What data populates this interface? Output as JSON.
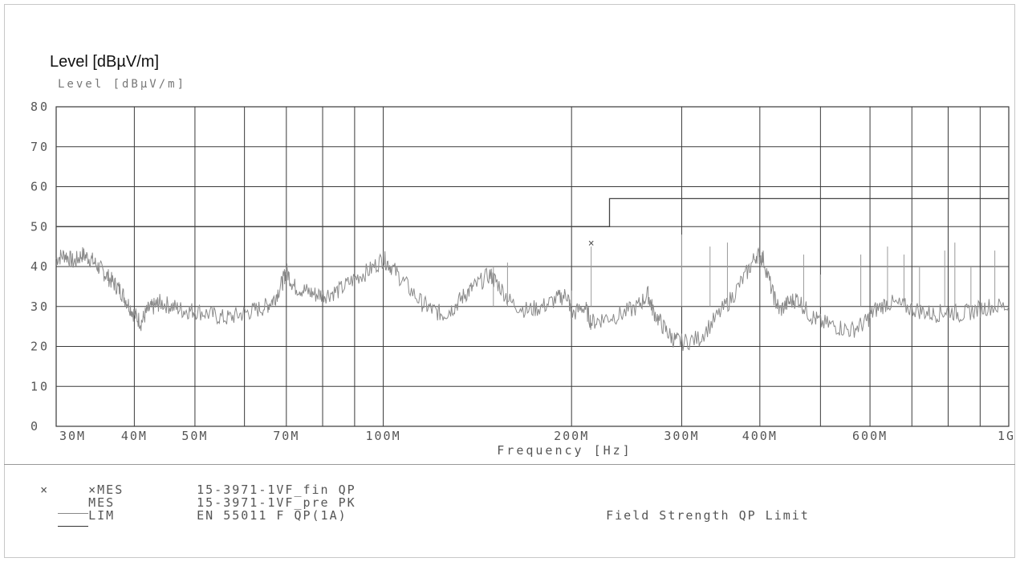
{
  "chart_data": {
    "type": "line",
    "ylabel": "Level [dBµV/m]",
    "ylabel_scan": "Level [dBµV/m]",
    "xlabel": "Frequency  [Hz]",
    "x_scale": "log",
    "xlim_hz": [
      30000000,
      1000000000
    ],
    "ylim": [
      0,
      80
    ],
    "yticks": [
      0,
      10,
      20,
      30,
      40,
      50,
      60,
      70,
      80
    ],
    "xtick_labels": [
      {
        "label": "30M",
        "value": 30000000
      },
      {
        "label": "40M",
        "value": 40000000
      },
      {
        "label": "50M",
        "value": 50000000
      },
      {
        "label": "70M",
        "value": 70000000
      },
      {
        "label": "100M",
        "value": 100000000
      },
      {
        "label": "200M",
        "value": 200000000
      },
      {
        "label": "300M",
        "value": 300000000
      },
      {
        "label": "400M",
        "value": 400000000
      },
      {
        "label": "600M",
        "value": 600000000
      },
      {
        "label": "1G",
        "value": 1000000000
      }
    ],
    "xgrid": [
      40000000,
      50000000,
      60000000,
      70000000,
      80000000,
      90000000,
      100000000,
      200000000,
      300000000,
      400000000,
      500000000,
      600000000,
      700000000,
      800000000,
      900000000
    ],
    "grid": true,
    "limit_line": {
      "name": "EN 55011 F QP(1A)",
      "points": [
        [
          30000000,
          50
        ],
        [
          230000000,
          50
        ],
        [
          230000000,
          57
        ],
        [
          1000000000,
          57
        ]
      ]
    },
    "series": [
      {
        "name": "15-3971-1VF_pre PK",
        "points": [
          [
            30000000,
            42
          ],
          [
            31000000,
            43
          ],
          [
            32000000,
            41
          ],
          [
            33000000,
            43
          ],
          [
            34000000,
            42
          ],
          [
            35000000,
            40
          ],
          [
            36000000,
            38
          ],
          [
            37000000,
            36
          ],
          [
            38000000,
            34
          ],
          [
            39000000,
            31
          ],
          [
            40000000,
            28
          ],
          [
            41000000,
            26
          ],
          [
            42000000,
            29
          ],
          [
            43000000,
            30
          ],
          [
            44000000,
            31
          ],
          [
            46000000,
            30
          ],
          [
            48000000,
            29
          ],
          [
            50000000,
            29
          ],
          [
            53000000,
            28
          ],
          [
            56000000,
            27
          ],
          [
            59000000,
            28
          ],
          [
            62000000,
            29
          ],
          [
            65000000,
            30
          ],
          [
            67000000,
            32
          ],
          [
            69000000,
            36
          ],
          [
            70000000,
            39
          ],
          [
            72000000,
            35
          ],
          [
            75000000,
            34
          ],
          [
            78000000,
            33
          ],
          [
            81000000,
            33
          ],
          [
            85000000,
            34
          ],
          [
            90000000,
            37
          ],
          [
            95000000,
            39
          ],
          [
            100000000,
            42
          ],
          [
            103000000,
            40
          ],
          [
            108000000,
            36
          ],
          [
            115000000,
            31
          ],
          [
            120000000,
            29
          ],
          [
            125000000,
            28
          ],
          [
            130000000,
            30
          ],
          [
            135000000,
            33
          ],
          [
            140000000,
            35
          ],
          [
            148000000,
            38
          ],
          [
            152000000,
            36
          ],
          [
            160000000,
            31
          ],
          [
            170000000,
            29
          ],
          [
            180000000,
            30
          ],
          [
            190000000,
            32
          ],
          [
            197000000,
            33
          ],
          [
            200000000,
            28
          ],
          [
            210000000,
            30
          ],
          [
            215000000,
            26
          ],
          [
            225000000,
            27
          ],
          [
            240000000,
            28
          ],
          [
            255000000,
            30
          ],
          [
            265000000,
            33
          ],
          [
            270000000,
            29
          ],
          [
            280000000,
            25
          ],
          [
            290000000,
            22
          ],
          [
            300000000,
            21
          ],
          [
            320000000,
            22
          ],
          [
            340000000,
            27
          ],
          [
            360000000,
            32
          ],
          [
            380000000,
            38
          ],
          [
            395000000,
            43
          ],
          [
            405000000,
            42
          ],
          [
            420000000,
            33
          ],
          [
            430000000,
            29
          ],
          [
            445000000,
            31
          ],
          [
            460000000,
            32
          ],
          [
            480000000,
            28
          ],
          [
            500000000,
            26
          ],
          [
            530000000,
            25
          ],
          [
            560000000,
            24
          ],
          [
            590000000,
            26
          ],
          [
            610000000,
            29
          ],
          [
            640000000,
            31
          ],
          [
            680000000,
            30
          ],
          [
            720000000,
            29
          ],
          [
            760000000,
            28
          ],
          [
            800000000,
            29
          ],
          [
            840000000,
            28
          ],
          [
            880000000,
            29
          ],
          [
            930000000,
            30
          ],
          [
            1000000000,
            30
          ]
        ]
      }
    ],
    "spikes": [
      {
        "x": 150000000,
        "y": 40
      },
      {
        "x": 158000000,
        "y": 41
      },
      {
        "x": 200000000,
        "y": 34
      },
      {
        "x": 215000000,
        "y": 45
      },
      {
        "x": 300000000,
        "y": 48
      },
      {
        "x": 333000000,
        "y": 45
      },
      {
        "x": 355000000,
        "y": 46
      },
      {
        "x": 470000000,
        "y": 43
      },
      {
        "x": 500000000,
        "y": 38
      },
      {
        "x": 580000000,
        "y": 43
      },
      {
        "x": 640000000,
        "y": 45
      },
      {
        "x": 680000000,
        "y": 43
      },
      {
        "x": 720000000,
        "y": 40
      },
      {
        "x": 790000000,
        "y": 44
      },
      {
        "x": 820000000,
        "y": 46
      },
      {
        "x": 870000000,
        "y": 40
      },
      {
        "x": 950000000,
        "y": 44
      }
    ],
    "measurements": [
      {
        "name": "15-3971-1VF_fin QP",
        "x": 215000000,
        "y": 46
      }
    ]
  },
  "legend": {
    "rows": [
      {
        "marker": "×",
        "code": "×MES",
        "name": "15-3971-1VF_fin QP",
        "desc": ""
      },
      {
        "marker": "",
        "code": "MES",
        "name": "15-3971-1VF_pre PK",
        "desc": ""
      },
      {
        "marker": "",
        "code": "LIM",
        "name": "EN 55011 F QP(1A)",
        "desc": "Field Strength QP Limit"
      }
    ]
  },
  "colors": {
    "grid": "#3a3a3a",
    "trace": "#8a8a8a",
    "limit": "#444444",
    "text": "#555555"
  }
}
